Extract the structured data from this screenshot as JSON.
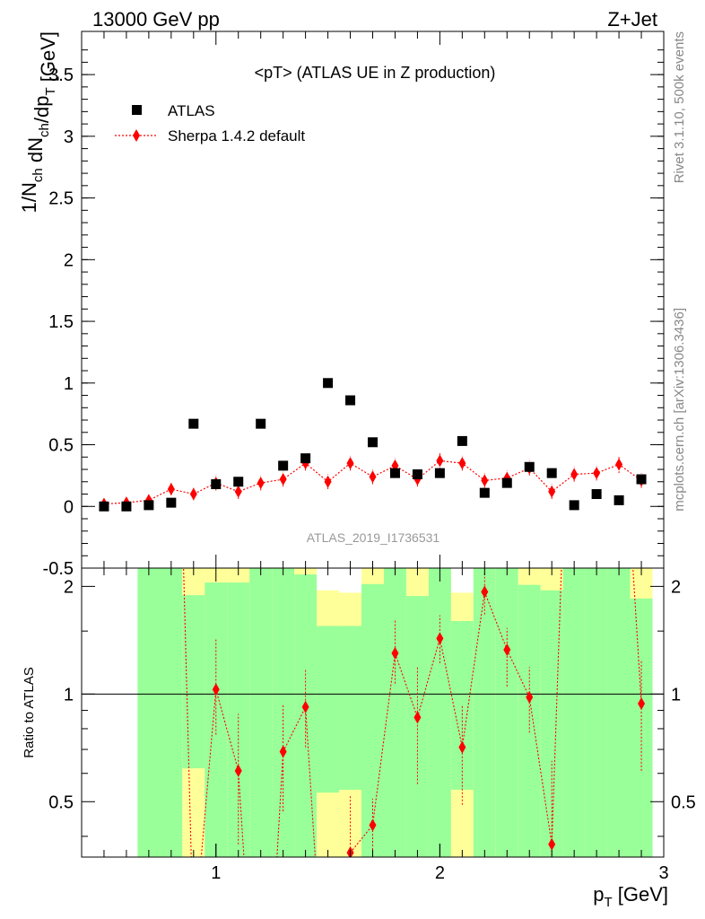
{
  "header": {
    "left": "13000 GeV pp",
    "right": "Z+Jet"
  },
  "side_labels": {
    "rivet": "Rivet 3.1.10,  500k events",
    "mcplots": "mcplots.cern.ch [arXiv:1306.3436]"
  },
  "colors": {
    "data": "#000000",
    "mc": "#ff0000",
    "band_stat": "#99ff99",
    "band_total": "#ffff99"
  },
  "chart_data": [
    {
      "type": "scatter",
      "title": "<pT> (ATLAS UE in Z production)",
      "ylabel": "1/N_ch dN_ch/dp_T [GeV]",
      "ylim": [
        -0.5,
        3.85
      ],
      "yticks": [
        "-0.5",
        "0",
        "0.5",
        "1",
        "1.5",
        "2",
        "2.5",
        "3",
        "3.5"
      ],
      "analysis_id": "ATLAS_2019_I1736531",
      "legend_position": "top-left",
      "series": [
        {
          "name": "ATLAS",
          "marker": "square",
          "x": [
            0.5,
            0.6,
            0.7,
            0.8,
            0.9,
            1.0,
            1.1,
            1.2,
            1.3,
            1.4,
            1.5,
            1.6,
            1.7,
            1.8,
            1.9,
            2.0,
            2.1,
            2.2,
            2.3,
            2.4,
            2.5,
            2.6,
            2.7,
            2.8,
            2.9
          ],
          "y": [
            0.0,
            0.0,
            0.01,
            0.03,
            0.67,
            0.18,
            0.2,
            0.67,
            0.33,
            0.39,
            1.0,
            0.86,
            0.52,
            0.27,
            0.26,
            0.27,
            0.53,
            0.11,
            0.19,
            0.32,
            0.27,
            0.01,
            0.1,
            0.05,
            0.22
          ]
        },
        {
          "name": "Sherpa 1.4.2 default",
          "marker": "diamond",
          "x": [
            0.5,
            0.6,
            0.7,
            0.8,
            0.9,
            1.0,
            1.1,
            1.2,
            1.3,
            1.4,
            1.5,
            1.6,
            1.7,
            1.8,
            1.9,
            2.0,
            2.1,
            2.2,
            2.3,
            2.4,
            2.5,
            2.6,
            2.7,
            2.8,
            2.9
          ],
          "y": [
            0.02,
            0.03,
            0.05,
            0.14,
            0.1,
            0.19,
            0.12,
            0.19,
            0.22,
            0.35,
            0.2,
            0.35,
            0.24,
            0.33,
            0.22,
            0.37,
            0.35,
            0.21,
            0.23,
            0.31,
            0.12,
            0.26,
            0.27,
            0.34,
            0.21
          ],
          "yerr": [
            0.02,
            0.02,
            0.03,
            0.05,
            0.05,
            0.06,
            0.06,
            0.06,
            0.06,
            0.06,
            0.06,
            0.06,
            0.06,
            0.06,
            0.06,
            0.07,
            0.06,
            0.06,
            0.06,
            0.06,
            0.06,
            0.06,
            0.06,
            0.07,
            0.06
          ]
        }
      ]
    },
    {
      "type": "scatter",
      "ylabel": "Ratio to ATLAS",
      "xlabel": "p_T [GeV]",
      "xlim": [
        0.4,
        3.0
      ],
      "ylim": [
        0.35,
        2.25
      ],
      "xticks": [
        "1",
        "2",
        "3"
      ],
      "yticks": [
        "0.5",
        "1",
        "2"
      ],
      "reference_line": 1,
      "bands": {
        "stat_color": "#99ff99",
        "total_color": "#ffff99",
        "bins": [
          {
            "x0": 0.65,
            "x1": 0.85,
            "stat_lo": 0.35,
            "stat_hi": 2.25,
            "tot_lo": 0.35,
            "tot_hi": 2.25
          },
          {
            "x0": 0.85,
            "x1": 0.95,
            "stat_lo": 0.62,
            "stat_hi": 1.89,
            "tot_lo": 0.35,
            "tot_hi": 2.25
          },
          {
            "x0": 0.95,
            "x1": 1.05,
            "stat_lo": 0.35,
            "stat_hi": 2.05,
            "tot_lo": 0.35,
            "tot_hi": 2.25
          },
          {
            "x0": 1.05,
            "x1": 1.15,
            "stat_lo": 0.35,
            "stat_hi": 2.05,
            "tot_lo": 0.35,
            "tot_hi": 2.25
          },
          {
            "x0": 1.15,
            "x1": 1.25,
            "stat_lo": 0.35,
            "stat_hi": 2.25,
            "tot_lo": 0.35,
            "tot_hi": 2.25
          },
          {
            "x0": 1.25,
            "x1": 1.35,
            "stat_lo": 0.35,
            "stat_hi": 2.25,
            "tot_lo": 0.35,
            "tot_hi": 2.25
          },
          {
            "x0": 1.35,
            "x1": 1.45,
            "stat_lo": 0.35,
            "stat_hi": 2.16,
            "tot_lo": 0.35,
            "tot_hi": 2.25
          },
          {
            "x0": 1.45,
            "x1": 1.55,
            "stat_lo": 0.53,
            "stat_hi": 1.55,
            "tot_lo": 0.35,
            "tot_hi": 1.95
          },
          {
            "x0": 1.55,
            "x1": 1.65,
            "stat_lo": 0.54,
            "stat_hi": 1.55,
            "tot_lo": 0.35,
            "tot_hi": 1.92
          },
          {
            "x0": 1.65,
            "x1": 1.75,
            "stat_lo": 0.35,
            "stat_hi": 2.03,
            "tot_lo": 0.35,
            "tot_hi": 2.25
          },
          {
            "x0": 1.75,
            "x1": 1.85,
            "stat_lo": 0.35,
            "stat_hi": 2.25,
            "tot_lo": 0.35,
            "tot_hi": 2.25
          },
          {
            "x0": 1.85,
            "x1": 1.95,
            "stat_lo": 0.35,
            "stat_hi": 1.88,
            "tot_lo": 0.35,
            "tot_hi": 2.25
          },
          {
            "x0": 1.95,
            "x1": 2.05,
            "stat_lo": 0.35,
            "stat_hi": 2.25,
            "tot_lo": 0.35,
            "tot_hi": 2.25
          },
          {
            "x0": 2.05,
            "x1": 2.15,
            "stat_lo": 0.54,
            "stat_hi": 1.6,
            "tot_lo": 0.35,
            "tot_hi": 1.92
          },
          {
            "x0": 2.15,
            "x1": 2.25,
            "stat_lo": 0.35,
            "stat_hi": 2.25,
            "tot_lo": 0.35,
            "tot_hi": 2.25
          },
          {
            "x0": 2.25,
            "x1": 2.35,
            "stat_lo": 0.35,
            "stat_hi": 2.25,
            "tot_lo": 0.35,
            "tot_hi": 2.25
          },
          {
            "x0": 2.35,
            "x1": 2.45,
            "stat_lo": 0.35,
            "stat_hi": 2.02,
            "tot_lo": 0.35,
            "tot_hi": 2.25
          },
          {
            "x0": 2.45,
            "x1": 2.55,
            "stat_lo": 0.35,
            "stat_hi": 1.95,
            "tot_lo": 0.35,
            "tot_hi": 2.25
          },
          {
            "x0": 2.55,
            "x1": 2.65,
            "stat_lo": 0.35,
            "stat_hi": 2.25,
            "tot_lo": 0.35,
            "tot_hi": 2.25
          },
          {
            "x0": 2.65,
            "x1": 2.75,
            "stat_lo": 0.35,
            "stat_hi": 2.25,
            "tot_lo": 0.35,
            "tot_hi": 2.25
          },
          {
            "x0": 2.75,
            "x1": 2.85,
            "stat_lo": 0.35,
            "stat_hi": 2.25,
            "tot_lo": 0.35,
            "tot_hi": 2.25
          },
          {
            "x0": 2.85,
            "x1": 2.95,
            "stat_lo": 0.35,
            "stat_hi": 1.85,
            "tot_lo": 0.35,
            "tot_hi": 2.25
          }
        ]
      },
      "series": [
        {
          "name": "Sherpa 1.4.2 default",
          "x": [
            1.0,
            1.1,
            1.3,
            1.4,
            1.6,
            1.7,
            1.8,
            1.9,
            2.0,
            2.1,
            2.2,
            2.3,
            2.4,
            2.5,
            2.9
          ],
          "y": [
            1.03,
            0.61,
            0.69,
            0.92,
            0.36,
            0.43,
            1.3,
            0.86,
            1.43,
            0.71,
            1.93,
            1.33,
            0.98,
            0.38,
            0.94
          ],
          "ylo": [
            0.77,
            0.38,
            0.47,
            0.71,
            0.25,
            0.35,
            1.07,
            0.56,
            1.22,
            0.49,
            1.67,
            1.05,
            0.78,
            0.25,
            0.61
          ],
          "yhi": [
            1.42,
            0.88,
            0.94,
            1.17,
            0.52,
            0.51,
            1.62,
            1.19,
            1.66,
            0.93,
            2.2,
            1.53,
            1.19,
            0.65,
            1.25
          ]
        }
      ]
    }
  ]
}
